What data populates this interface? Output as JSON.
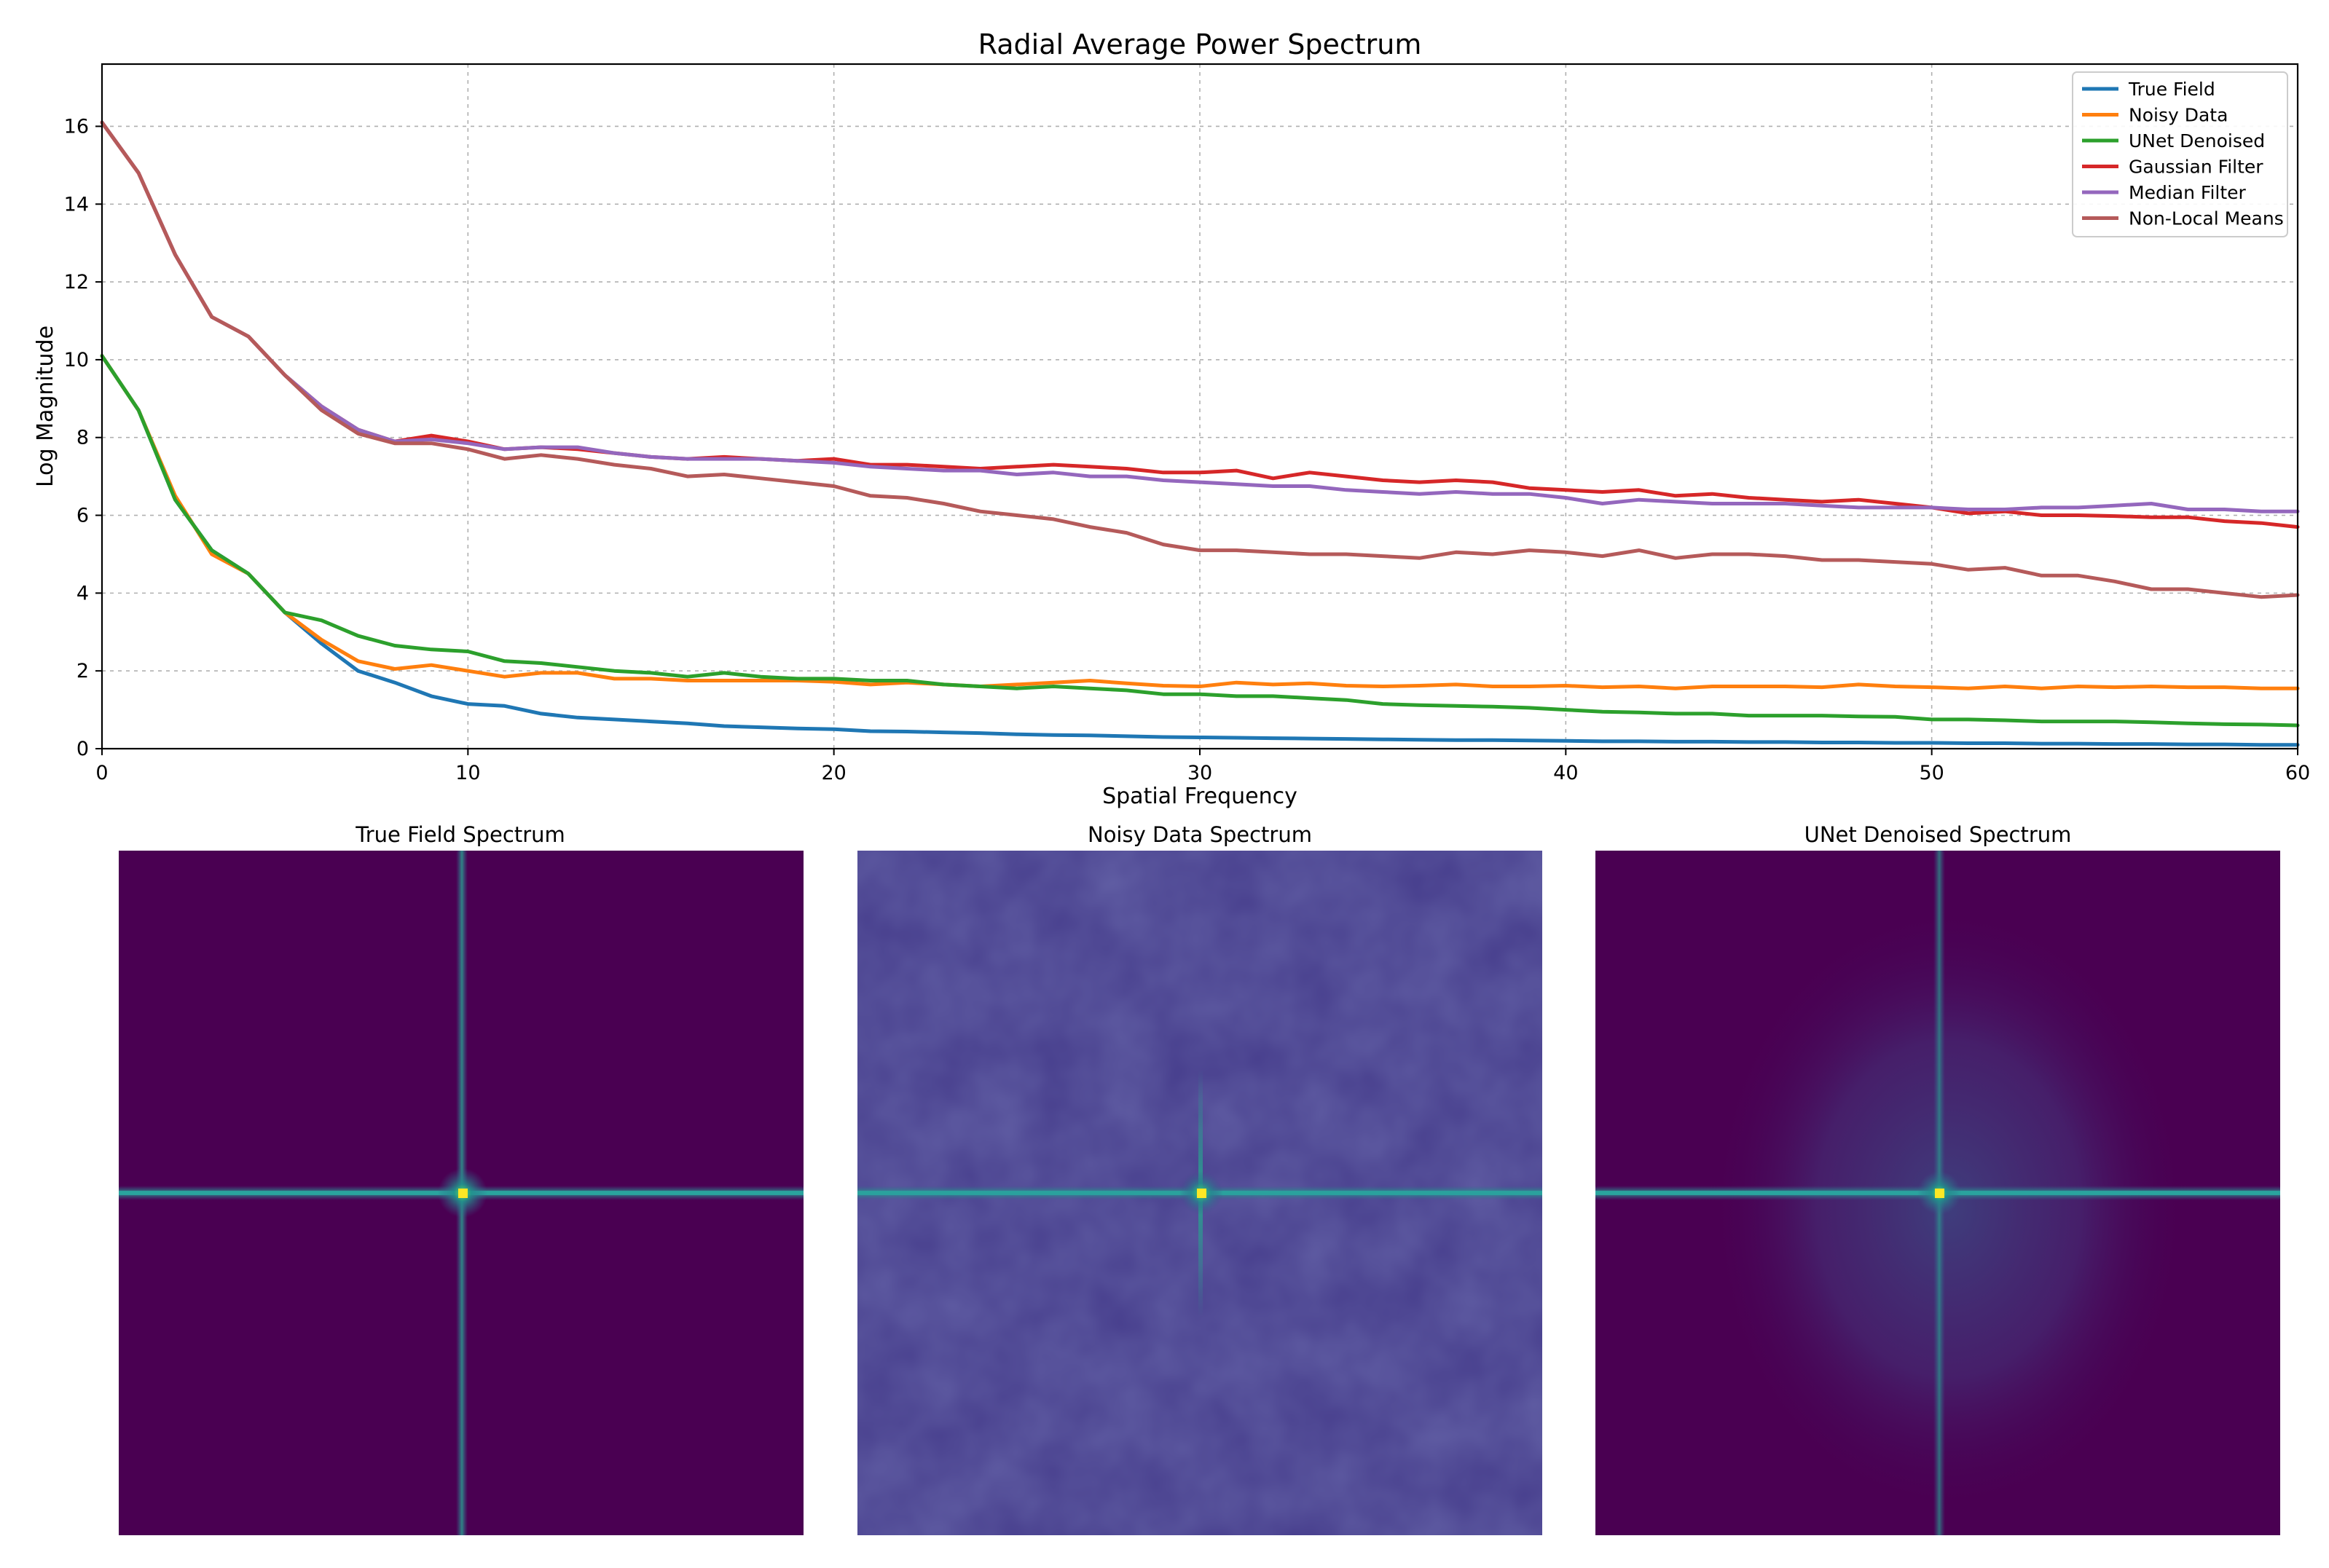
{
  "chart_data": [
    {
      "type": "line",
      "title": "Radial Average Power Spectrum",
      "xlabel": "Spatial Frequency",
      "ylabel": "Log Magnitude",
      "xlim": [
        0,
        60
      ],
      "ylim": [
        0,
        17.6
      ],
      "xticks": [
        0,
        10,
        20,
        30,
        40,
        50,
        60
      ],
      "yticks": [
        0,
        2,
        4,
        6,
        8,
        10,
        12,
        14,
        16
      ],
      "grid": true,
      "legend_position": "top-right",
      "x": [
        0,
        1,
        2,
        3,
        4,
        5,
        6,
        7,
        8,
        9,
        10,
        11,
        12,
        13,
        14,
        15,
        16,
        17,
        18,
        19,
        20,
        21,
        22,
        23,
        24,
        25,
        26,
        27,
        28,
        29,
        30,
        31,
        32,
        33,
        34,
        35,
        36,
        37,
        38,
        39,
        40,
        41,
        42,
        43,
        44,
        45,
        46,
        47,
        48,
        49,
        50,
        51,
        52,
        53,
        54,
        55,
        56,
        57,
        58,
        59,
        60
      ],
      "series": [
        {
          "name": "True Field",
          "color": "#1f77b4",
          "values": [
            10.1,
            8.7,
            6.4,
            5.1,
            4.5,
            3.5,
            2.7,
            2.0,
            1.7,
            1.35,
            1.15,
            1.1,
            0.9,
            0.8,
            0.75,
            0.7,
            0.65,
            0.58,
            0.55,
            0.52,
            0.5,
            0.45,
            0.44,
            0.42,
            0.4,
            0.37,
            0.35,
            0.34,
            0.32,
            0.3,
            0.29,
            0.28,
            0.27,
            0.26,
            0.25,
            0.24,
            0.23,
            0.22,
            0.22,
            0.21,
            0.2,
            0.19,
            0.19,
            0.18,
            0.18,
            0.17,
            0.17,
            0.16,
            0.16,
            0.15,
            0.15,
            0.14,
            0.14,
            0.13,
            0.13,
            0.12,
            0.12,
            0.11,
            0.11,
            0.1,
            0.1
          ]
        },
        {
          "name": "Noisy Data",
          "color": "#ff7f0e",
          "values": [
            10.1,
            8.7,
            6.5,
            5.0,
            4.5,
            3.5,
            2.8,
            2.25,
            2.05,
            2.15,
            2.0,
            1.85,
            1.95,
            1.95,
            1.8,
            1.8,
            1.75,
            1.75,
            1.75,
            1.75,
            1.72,
            1.65,
            1.7,
            1.65,
            1.6,
            1.65,
            1.7,
            1.75,
            1.68,
            1.62,
            1.6,
            1.7,
            1.65,
            1.68,
            1.62,
            1.6,
            1.62,
            1.65,
            1.6,
            1.6,
            1.62,
            1.58,
            1.6,
            1.55,
            1.6,
            1.6,
            1.6,
            1.58,
            1.65,
            1.6,
            1.58,
            1.55,
            1.6,
            1.55,
            1.6,
            1.58,
            1.6,
            1.58,
            1.58,
            1.55,
            1.55
          ]
        },
        {
          "name": "UNet Denoised",
          "color": "#2ca02c",
          "values": [
            10.1,
            8.7,
            6.4,
            5.1,
            4.5,
            3.5,
            3.3,
            2.9,
            2.65,
            2.55,
            2.5,
            2.25,
            2.2,
            2.1,
            2.0,
            1.95,
            1.85,
            1.95,
            1.85,
            1.8,
            1.8,
            1.75,
            1.75,
            1.65,
            1.6,
            1.55,
            1.6,
            1.55,
            1.5,
            1.4,
            1.4,
            1.35,
            1.35,
            1.3,
            1.25,
            1.15,
            1.12,
            1.1,
            1.08,
            1.05,
            1.0,
            0.95,
            0.93,
            0.9,
            0.9,
            0.85,
            0.85,
            0.85,
            0.83,
            0.82,
            0.75,
            0.75,
            0.73,
            0.7,
            0.7,
            0.7,
            0.68,
            0.65,
            0.63,
            0.62,
            0.6
          ]
        },
        {
          "name": "Gaussian Filter",
          "color": "#d62728",
          "values": [
            16.1,
            14.8,
            12.7,
            11.1,
            10.6,
            9.6,
            8.8,
            8.2,
            7.9,
            8.05,
            7.9,
            7.7,
            7.75,
            7.7,
            7.6,
            7.5,
            7.45,
            7.5,
            7.45,
            7.4,
            7.45,
            7.3,
            7.3,
            7.25,
            7.2,
            7.25,
            7.3,
            7.25,
            7.2,
            7.1,
            7.1,
            7.15,
            6.95,
            7.1,
            7.0,
            6.9,
            6.85,
            6.9,
            6.85,
            6.7,
            6.65,
            6.6,
            6.65,
            6.5,
            6.55,
            6.45,
            6.4,
            6.35,
            6.4,
            6.3,
            6.2,
            6.05,
            6.1,
            6.0,
            6.0,
            5.98,
            5.95,
            5.95,
            5.85,
            5.8,
            5.7
          ]
        },
        {
          "name": "Median Filter",
          "color": "#9467bd",
          "values": [
            16.1,
            14.8,
            12.7,
            11.1,
            10.6,
            9.6,
            8.8,
            8.2,
            7.9,
            7.95,
            7.85,
            7.7,
            7.75,
            7.75,
            7.6,
            7.5,
            7.45,
            7.45,
            7.45,
            7.4,
            7.35,
            7.25,
            7.2,
            7.15,
            7.15,
            7.05,
            7.1,
            7.0,
            7.0,
            6.9,
            6.85,
            6.8,
            6.75,
            6.75,
            6.65,
            6.6,
            6.55,
            6.6,
            6.55,
            6.55,
            6.45,
            6.3,
            6.4,
            6.35,
            6.3,
            6.3,
            6.3,
            6.25,
            6.2,
            6.2,
            6.2,
            6.15,
            6.15,
            6.2,
            6.2,
            6.25,
            6.3,
            6.15,
            6.15,
            6.1,
            6.1
          ]
        },
        {
          "name": "Non-Local Means",
          "color": "#b55a5a",
          "values": [
            16.1,
            14.8,
            12.7,
            11.1,
            10.6,
            9.6,
            8.7,
            8.1,
            7.85,
            7.85,
            7.7,
            7.45,
            7.55,
            7.45,
            7.3,
            7.2,
            7.0,
            7.05,
            6.95,
            6.85,
            6.75,
            6.5,
            6.45,
            6.3,
            6.1,
            6.0,
            5.9,
            5.7,
            5.55,
            5.25,
            5.1,
            5.1,
            5.05,
            5.0,
            5.0,
            4.95,
            4.9,
            5.05,
            5.0,
            5.1,
            5.05,
            4.95,
            5.1,
            4.9,
            5.0,
            5.0,
            4.95,
            4.85,
            4.85,
            4.8,
            4.75,
            4.6,
            4.65,
            4.45,
            4.45,
            4.3,
            4.1,
            4.1,
            4.0,
            3.9,
            3.95
          ]
        }
      ]
    },
    {
      "type": "heatmap",
      "title": "True Field Spectrum",
      "center_peak": "bright yellow",
      "background_level": "low"
    },
    {
      "type": "heatmap",
      "title": "Noisy Data Spectrum",
      "center_peak": "bright yellow",
      "background_level": "elevated noise floor"
    },
    {
      "type": "heatmap",
      "title": "UNet Denoised Spectrum",
      "center_peak": "bright yellow",
      "background_level": "low with diffuse central halo"
    }
  ],
  "colors": {
    "viridis_dark": "#440154",
    "viridis_noise": "#3b3f8f",
    "viridis_mid": "#2a788e",
    "viridis_teal": "#21a585",
    "viridis_yellow": "#fde725",
    "grid": "#b0b0b0",
    "axis": "#000000"
  }
}
